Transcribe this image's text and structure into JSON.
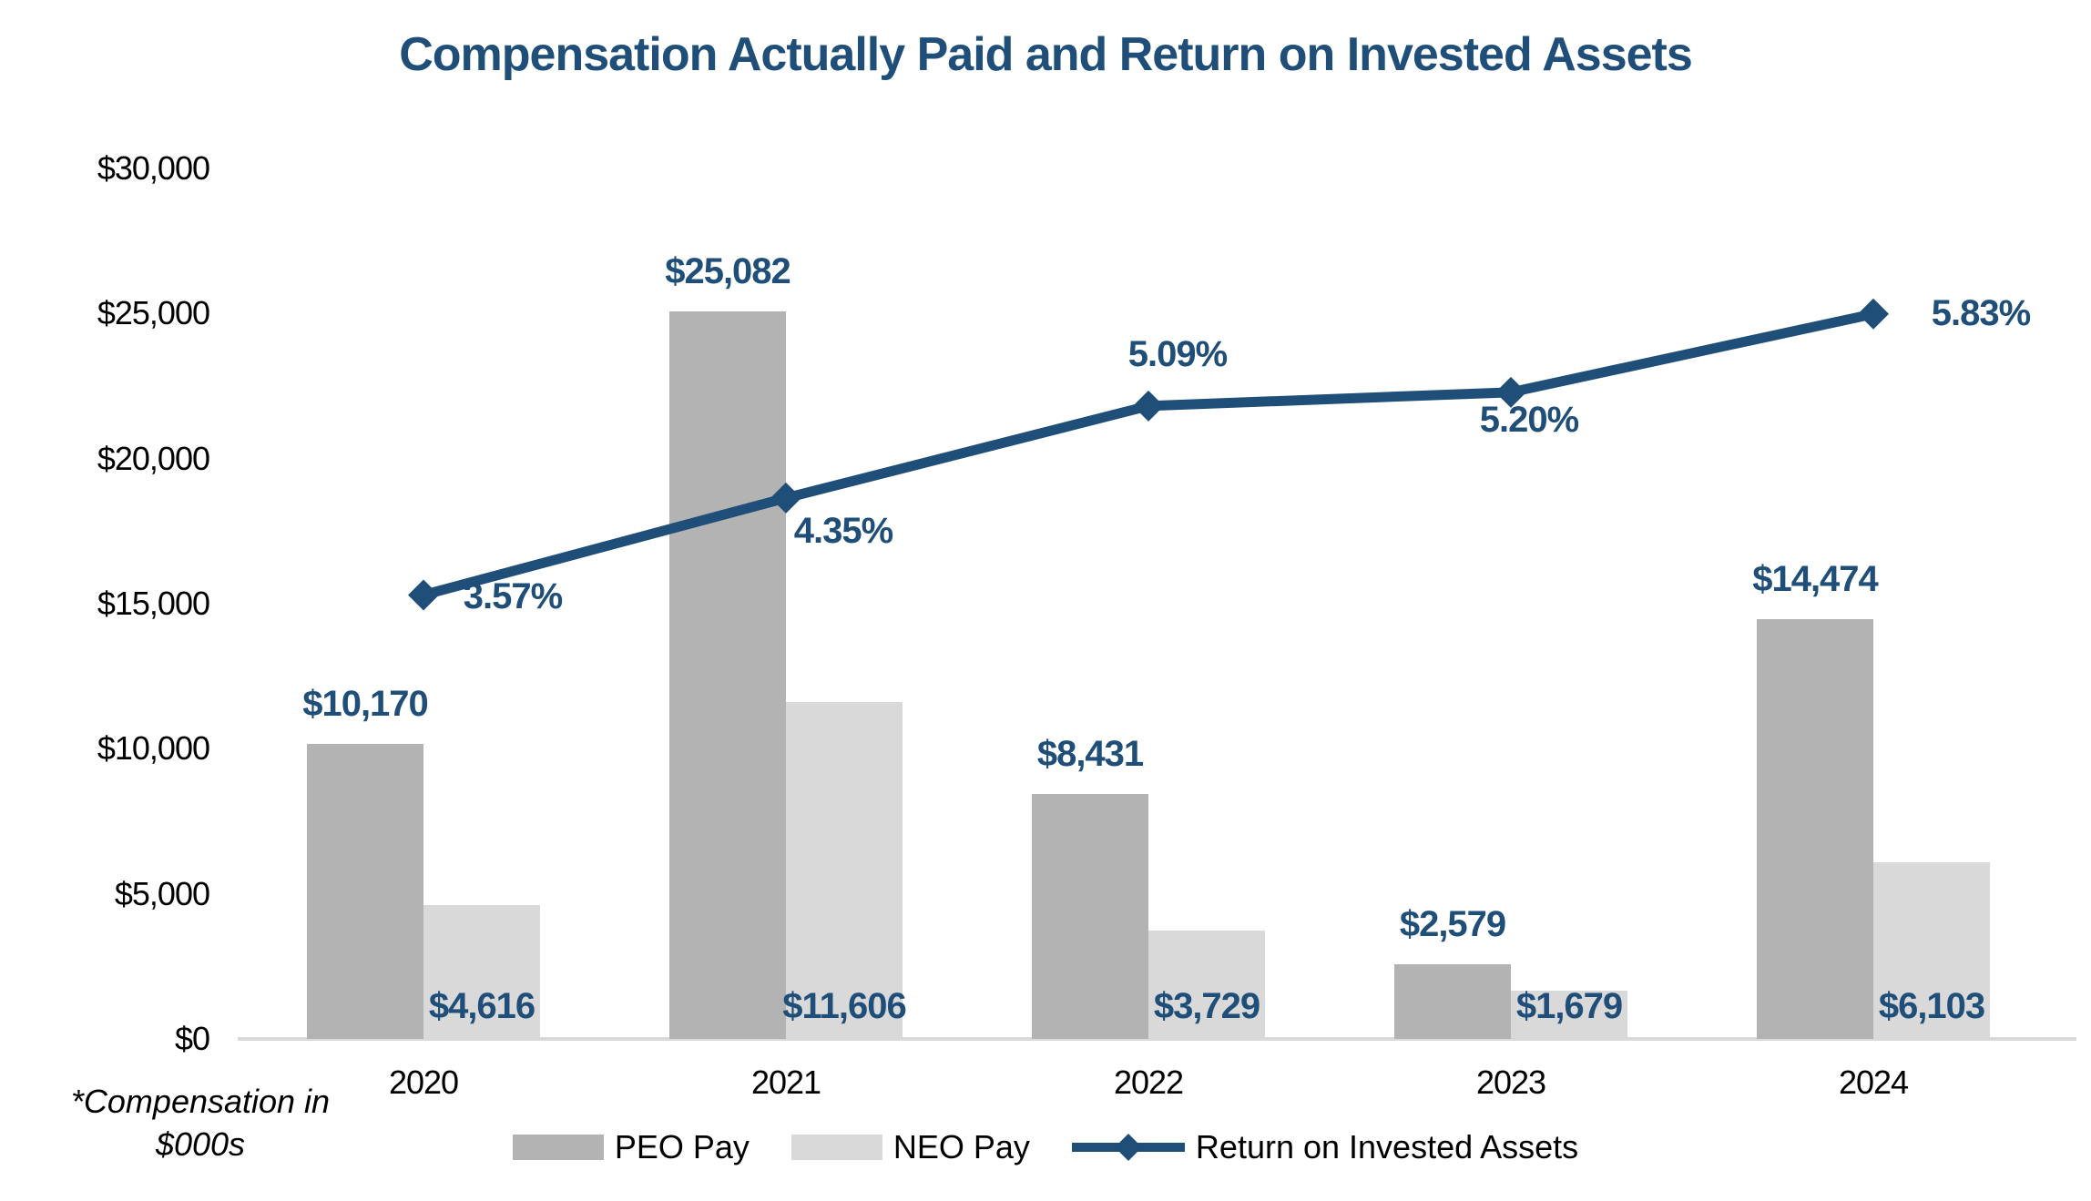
{
  "title": "Compensation Actually Paid and Return on Invested Assets",
  "footnote": {
    "line1": "*Compensation in",
    "line2": "$000s"
  },
  "colors": {
    "navy": "#1F4E79",
    "peo_gray": "#B3B3B3",
    "neo_gray": "#D9D9D9",
    "axis_line": "#D9D9D9",
    "tick_text": "#000000"
  },
  "legend": {
    "items": [
      {
        "label": "PEO Pay",
        "swatch": "bar",
        "color": "#B3B3B3"
      },
      {
        "label": "NEO Pay",
        "swatch": "bar",
        "color": "#D9D9D9"
      },
      {
        "label": "Return on Invested Assets",
        "swatch": "line-diamond",
        "color": "#1F4E79"
      }
    ]
  },
  "chart_data": {
    "type": "combo-bar-line",
    "title": "Compensation Actually Paid and Return on Invested Assets",
    "categories": [
      "2020",
      "2021",
      "2022",
      "2023",
      "2024"
    ],
    "series": [
      {
        "name": "PEO Pay",
        "type": "bar",
        "axis": "primary",
        "color": "#B3B3B3",
        "values": [
          10170,
          25082,
          8431,
          2579,
          14474
        ],
        "labels": [
          "$10,170",
          "$25,082",
          "$8,431",
          "$2,579",
          "$14,474"
        ],
        "label_position": "above-bar"
      },
      {
        "name": "NEO Pay",
        "type": "bar",
        "axis": "primary",
        "color": "#D9D9D9",
        "values": [
          4616,
          11606,
          3729,
          1679,
          6103
        ],
        "labels": [
          "$4,616",
          "$11,606",
          "$3,729",
          "$1,679",
          "$6,103"
        ],
        "label_position": "inside-bar-bottom"
      },
      {
        "name": "Return on Invested Assets",
        "type": "line",
        "axis": "secondary",
        "color": "#1F4E79",
        "marker": "diamond",
        "values": [
          3.57,
          4.35,
          5.09,
          5.2,
          5.83
        ],
        "labels": [
          "3.57%",
          "4.35%",
          "5.09%",
          "5.20%",
          "5.83%"
        ],
        "label_offsets": [
          {
            "dx": 98,
            "dy": 2
          },
          {
            "dx": 63,
            "dy": 36
          },
          {
            "dx": 32,
            "dy": -57
          },
          {
            "dx": 20,
            "dy": 30
          },
          {
            "dx": 118,
            "dy": -1
          }
        ]
      }
    ],
    "y_axis": {
      "min": 0,
      "max": 30000,
      "tick_labels": [
        "$0",
        "$5,000",
        "$10,000",
        "$15,000",
        "$20,000",
        "$25,000",
        "$30,000"
      ],
      "gridlines": false
    },
    "secondary_y_axis": {
      "min": 0,
      "max": 7,
      "visible": false
    },
    "xlabel": "",
    "ylabel": "",
    "legend_position": "bottom",
    "note": "*Compensation in $000s"
  }
}
